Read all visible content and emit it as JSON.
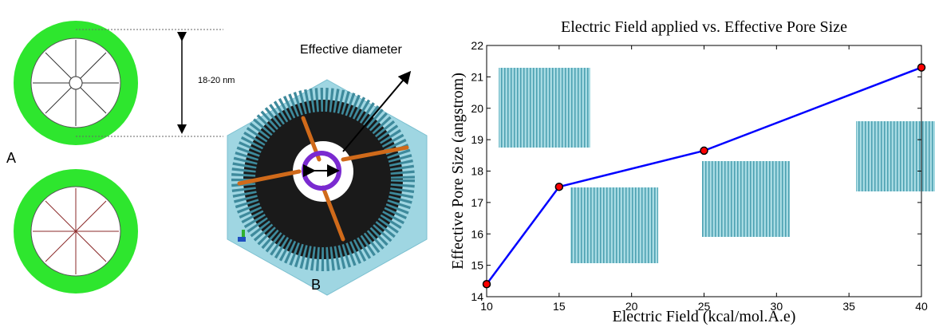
{
  "panel_a": {
    "label": "A",
    "dimension": "18-20 nm"
  },
  "panel_b": {
    "label": "B",
    "annotation": "Effective diameter"
  },
  "chart_data": {
    "type": "line",
    "title": "Electric Field applied vs. Effective Pore Size",
    "x_label": "Electric Field (kcal/mol.A.e)",
    "y_label": "Effective Pore Size (angstrom)",
    "x": [
      10,
      15,
      25,
      40
    ],
    "values": [
      14.4,
      17.5,
      18.65,
      21.3
    ],
    "color": "#0000ff",
    "marker_color": "#ff0000",
    "xlim": [
      10,
      40
    ],
    "xticks": [
      10,
      15,
      20,
      25,
      30,
      35,
      40
    ],
    "ylim": [
      14,
      22
    ],
    "yticks": [
      14,
      15,
      16,
      17,
      18,
      19,
      20,
      21,
      22
    ],
    "grid": false
  }
}
